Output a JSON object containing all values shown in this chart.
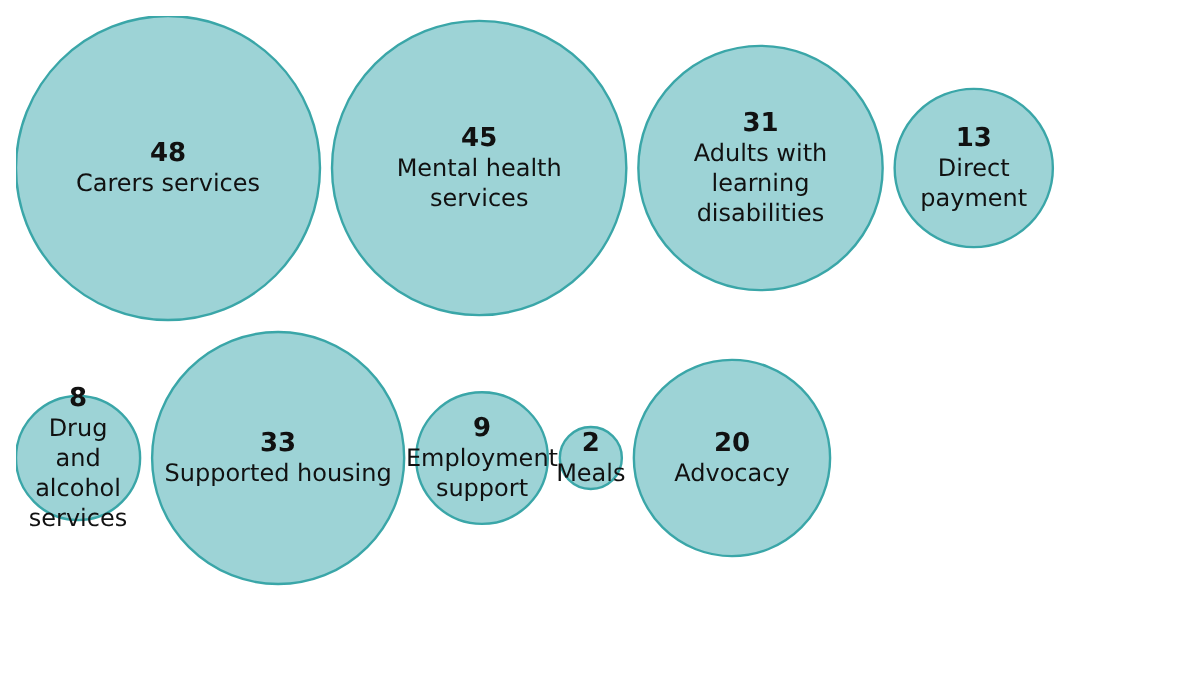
{
  "chart_data": {
    "type": "other",
    "categories": [
      "Carers services",
      "Mental health services",
      "Adults with learning disabilities",
      "Direct payment",
      "Drug and alcohol services",
      "Supported housing",
      "Employment support",
      "Meals",
      "Advocacy"
    ],
    "values": [
      48,
      45,
      31,
      13,
      8,
      33,
      9,
      2,
      20
    ],
    "color": "#9dd3d6",
    "data_labels": true
  }
}
